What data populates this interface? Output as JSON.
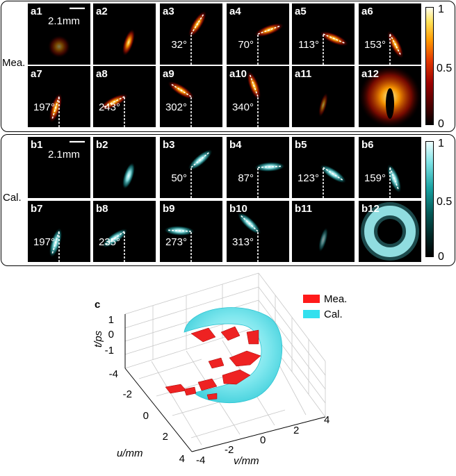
{
  "measured": {
    "row_label": "Mea.",
    "scale_bar": "2.1mm",
    "panels": [
      {
        "id": "a1",
        "angle": ""
      },
      {
        "id": "a2",
        "angle": ""
      },
      {
        "id": "a3",
        "angle": "32°",
        "deg": 32
      },
      {
        "id": "a4",
        "angle": "70°",
        "deg": 70
      },
      {
        "id": "a5",
        "angle": "113°",
        "deg": 113
      },
      {
        "id": "a6",
        "angle": "153°",
        "deg": 153
      },
      {
        "id": "a7",
        "angle": "197°",
        "deg": 197
      },
      {
        "id": "a8",
        "angle": "243°",
        "deg": 243
      },
      {
        "id": "a9",
        "angle": "302°",
        "deg": 302
      },
      {
        "id": "a10",
        "angle": "340°",
        "deg": 340
      },
      {
        "id": "a11",
        "angle": ""
      },
      {
        "id": "a12",
        "angle": ""
      }
    ],
    "colorbar": {
      "max": "1",
      "mid": "0.5",
      "min": "0"
    },
    "colors": {
      "hot": "#ff8c00",
      "dark": "#000000"
    }
  },
  "calculated": {
    "row_label": "Cal.",
    "scale_bar": "2.1mm",
    "panels": [
      {
        "id": "b1",
        "angle": ""
      },
      {
        "id": "b2",
        "angle": ""
      },
      {
        "id": "b3",
        "angle": "50°",
        "deg": 50
      },
      {
        "id": "b4",
        "angle": "87°",
        "deg": 87
      },
      {
        "id": "b5",
        "angle": "123°",
        "deg": 123
      },
      {
        "id": "b6",
        "angle": "159°",
        "deg": 159
      },
      {
        "id": "b7",
        "angle": "197°",
        "deg": 197
      },
      {
        "id": "b8",
        "angle": "235°",
        "deg": 235
      },
      {
        "id": "b9",
        "angle": "273°",
        "deg": 273
      },
      {
        "id": "b10",
        "angle": "313°",
        "deg": 313
      },
      {
        "id": "b11",
        "angle": ""
      },
      {
        "id": "b12",
        "angle": ""
      }
    ],
    "colorbar": {
      "max": "1",
      "mid": "0.5",
      "min": "0"
    },
    "colors": {
      "cyan": "#6fe6ea",
      "dark": "#000000"
    }
  },
  "plot3d": {
    "panel_label": "c",
    "legend": [
      {
        "label": "Mea.",
        "color": "#ff1a1a"
      },
      {
        "label": "Cal.",
        "color": "#33e0ee"
      }
    ],
    "t_axis": {
      "label": "t/ps",
      "ticks": [
        "1",
        "0",
        "-1"
      ]
    },
    "u_axis": {
      "label": "u/mm",
      "ticks": [
        "-4",
        "-2",
        "0",
        "2",
        "4"
      ]
    },
    "v_axis": {
      "label": "v/mm",
      "ticks": [
        "-4",
        "-2",
        "0",
        "2",
        "4"
      ]
    }
  }
}
